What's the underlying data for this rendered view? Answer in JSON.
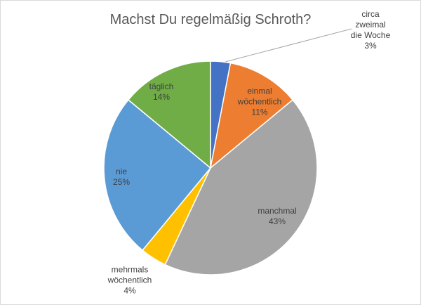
{
  "chart_data": {
    "type": "pie",
    "title": "Machst Du regelmäßig Schroth?",
    "categories": [
      "circa\nzweimal\ndie Woche",
      "einmal\nwöchentlich",
      "manchmal",
      "mehrmals\nwöchentlich",
      "nie",
      "täglich"
    ],
    "values": [
      3,
      11,
      43,
      4,
      25,
      14
    ],
    "value_labels": [
      "3%",
      "11%",
      "43%",
      "4%",
      "25%",
      "14%"
    ],
    "colors": [
      "#4472c4",
      "#ed7d31",
      "#a5a5a5",
      "#ffc000",
      "#5b9bd5",
      "#70ad47"
    ]
  }
}
